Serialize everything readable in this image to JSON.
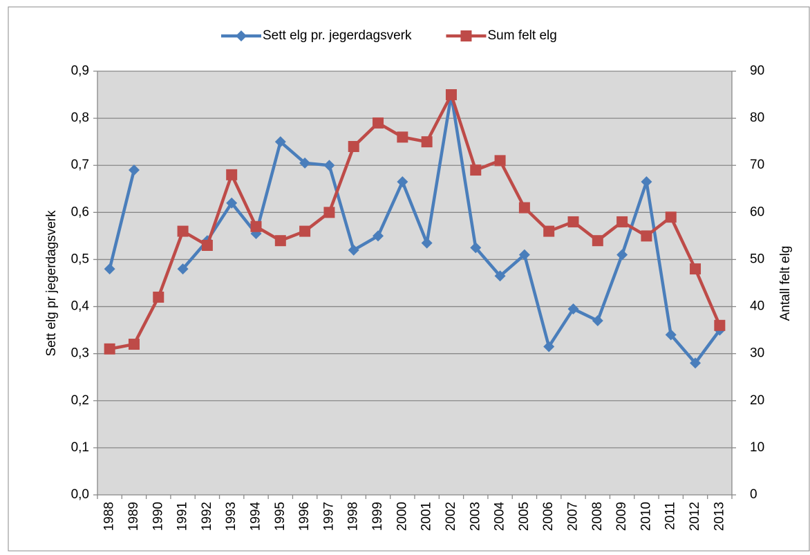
{
  "chart_data": {
    "type": "line",
    "categories": [
      "1988",
      "1989",
      "1990",
      "1991",
      "1992",
      "1993",
      "1994",
      "1995",
      "1996",
      "1997",
      "1998",
      "1999",
      "2000",
      "2001",
      "2002",
      "2003",
      "2004",
      "2005",
      "2006",
      "2007",
      "2008",
      "2009",
      "2010",
      "2011",
      "2012",
      "2013"
    ],
    "series": [
      {
        "name": "Sett elg pr. jegerdagsverk",
        "color": "#4a7ebb",
        "marker": "diamond",
        "axis": "y",
        "values": [
          0.48,
          0.69,
          null,
          0.48,
          0.54,
          0.62,
          0.555,
          0.75,
          0.705,
          0.7,
          0.52,
          0.55,
          0.665,
          0.535,
          0.85,
          0.525,
          0.465,
          0.51,
          0.315,
          0.395,
          0.37,
          0.51,
          0.665,
          0.34,
          0.28,
          0.35
        ]
      },
      {
        "name": "Sum felt elg",
        "color": "#be4b48",
        "marker": "square",
        "axis": "y2",
        "values": [
          31,
          32,
          42,
          56,
          53,
          68,
          57,
          54,
          56,
          60,
          74,
          79,
          76,
          75,
          85,
          69,
          71,
          61,
          56,
          58,
          54,
          58,
          55,
          59,
          48,
          36
        ]
      }
    ],
    "ylabel": "Sett elg pr  jegerdagsverk",
    "y2label": "Antall felt elg",
    "ylim": [
      0,
      0.9
    ],
    "yticks": [
      {
        "value": 0,
        "label": "0,0"
      },
      {
        "value": 0.1,
        "label": "0,1"
      },
      {
        "value": 0.2,
        "label": "0,2"
      },
      {
        "value": 0.3,
        "label": "0,3"
      },
      {
        "value": 0.4,
        "label": "0,4"
      },
      {
        "value": 0.5,
        "label": "0,5"
      },
      {
        "value": 0.6,
        "label": "0,6"
      },
      {
        "value": 0.7,
        "label": "0,7"
      },
      {
        "value": 0.8,
        "label": "0,8"
      },
      {
        "value": 0.9,
        "label": "0,9"
      }
    ],
    "y2lim": [
      0,
      90
    ],
    "y2ticks": [
      0,
      10,
      20,
      30,
      40,
      50,
      60,
      70,
      80,
      90
    ],
    "grid": true,
    "legend": "top"
  }
}
